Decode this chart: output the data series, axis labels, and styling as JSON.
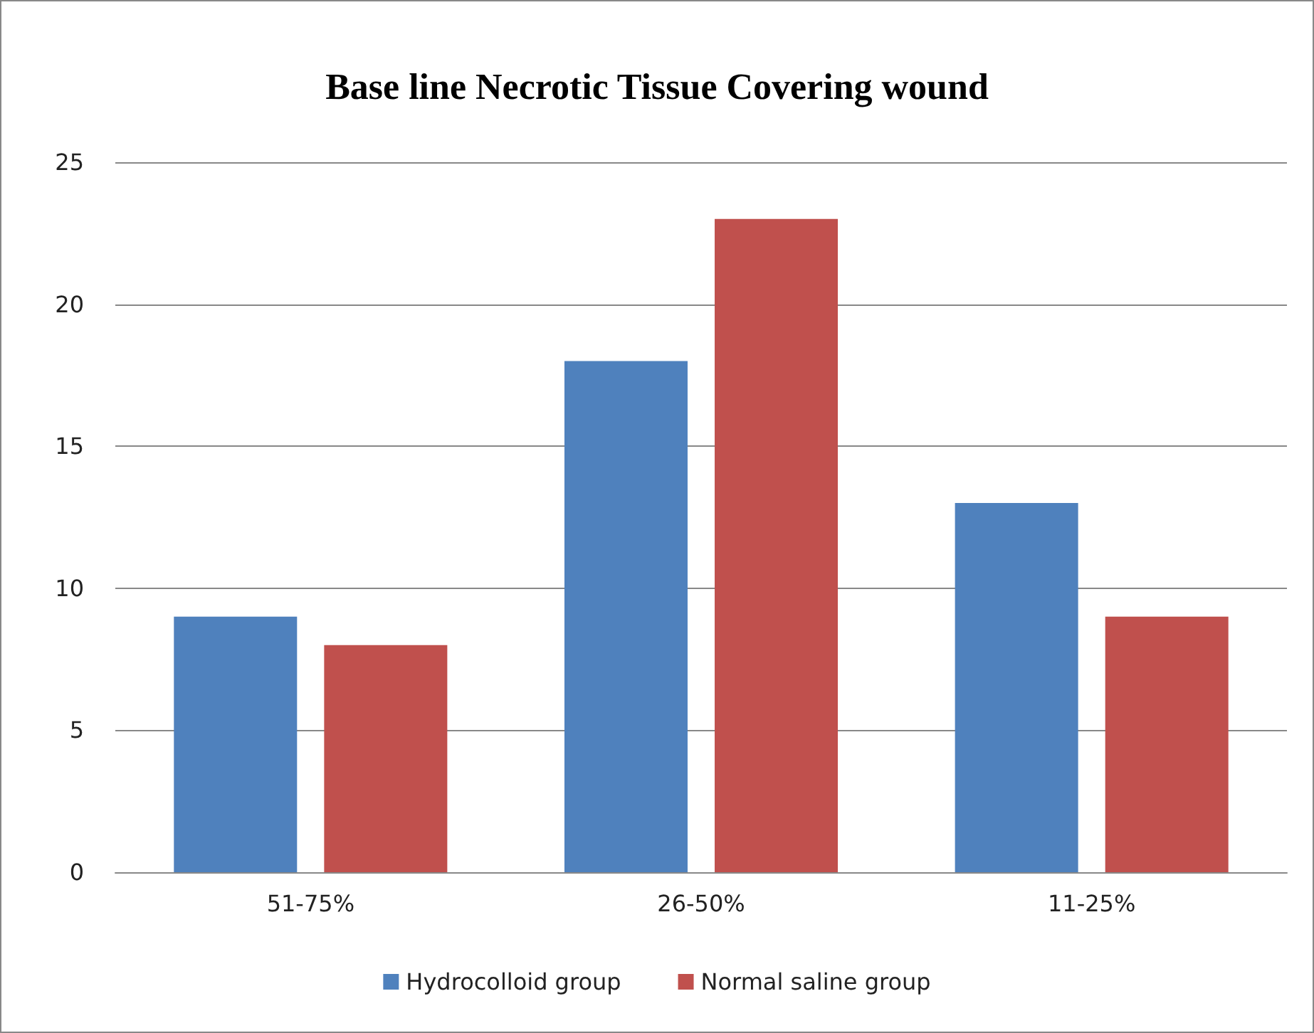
{
  "chart_data": {
    "type": "bar",
    "title": "Base line Necrotic Tissue Covering wound",
    "categories": [
      "51-75%",
      "26-50%",
      "11-25%"
    ],
    "series": [
      {
        "name": "Hydrocolloid group",
        "color": "#4f81bd",
        "values": [
          9,
          18,
          13
        ]
      },
      {
        "name": "Normal saline group",
        "color": "#c0504d",
        "values": [
          8,
          23,
          9
        ]
      }
    ],
    "ylim": [
      0,
      25
    ],
    "yticks": [
      0,
      5,
      10,
      15,
      20,
      25
    ],
    "grid": "y",
    "legend": "bottom"
  }
}
